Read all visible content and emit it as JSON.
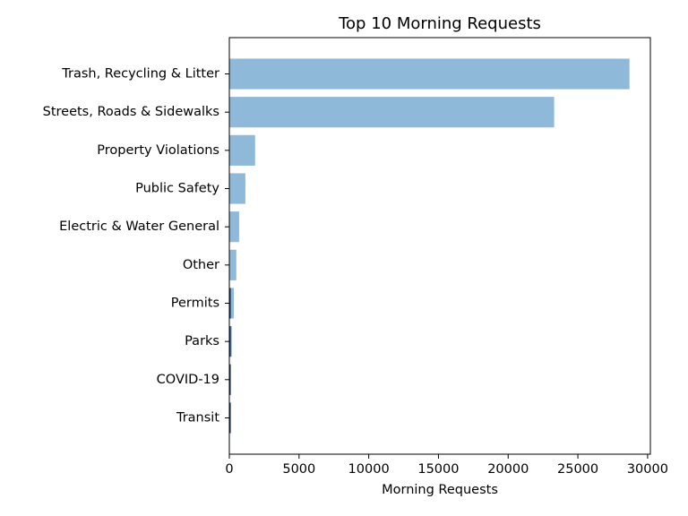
{
  "chart_data": {
    "type": "bar",
    "orientation": "horizontal",
    "title": "Top 10 Morning Requests",
    "xlabel": "Morning Requests",
    "ylabel": "",
    "categories": [
      "Trash, Recycling & Litter",
      "Streets, Roads & Sidewalks",
      "Property Violations",
      "Public Safety",
      "Electric & Water General",
      "Other",
      "Permits",
      "Parks",
      "COVID-19",
      "Transit"
    ],
    "values": [
      28700,
      23300,
      1850,
      1150,
      700,
      500,
      320,
      180,
      90,
      60
    ],
    "xlim": [
      0,
      30200
    ],
    "xticks": [
      0,
      5000,
      10000,
      15000,
      20000,
      25000,
      30000
    ],
    "grid": false,
    "legend": "none",
    "bar_color": "#8fb9d9",
    "edge_color": "#1f3b73"
  }
}
